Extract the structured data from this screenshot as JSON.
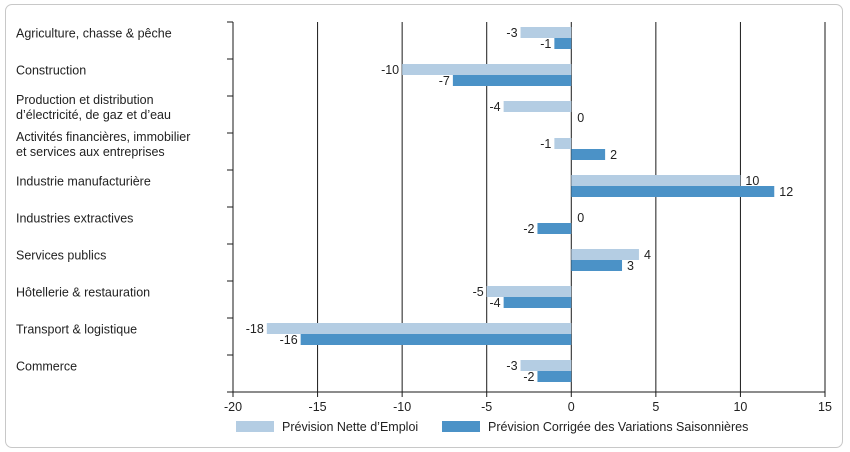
{
  "chart_data": {
    "type": "bar",
    "orientation": "horizontal",
    "categories": [
      [
        "Agriculture, chasse & pêche"
      ],
      [
        "Construction"
      ],
      [
        "Production et distribution",
        "d’électricité, de gaz et d’eau"
      ],
      [
        "Activités financières, immobilier",
        "et services aux entreprises"
      ],
      [
        "Industrie manufacturière"
      ],
      [
        "Industries extractives"
      ],
      [
        "Services publics"
      ],
      [
        "Hôtellerie & restauration"
      ],
      [
        "Transport & logistique"
      ],
      [
        "Commerce"
      ]
    ],
    "series": [
      {
        "name": "Prévision Nette d’Emploi",
        "color": "#b4cde3",
        "values": [
          -3,
          -10,
          -4,
          -1,
          10,
          0,
          4,
          -5,
          -18,
          -3
        ]
      },
      {
        "name": "Prévision Corrigée des Variations Saisonnières",
        "color": "#4b92c7",
        "values": [
          -1,
          -7,
          0,
          2,
          12,
          -2,
          3,
          -4,
          -16,
          -2
        ]
      }
    ],
    "xlim": [
      -20,
      15
    ],
    "xticks": [
      -20,
      -15,
      -10,
      -5,
      0,
      5,
      10,
      15
    ],
    "xtick_labels": [
      "-20",
      "-15",
      "-10",
      "-5",
      "0",
      "5",
      "10",
      "15"
    ],
    "grid": "vertical",
    "legend_position": "bottom"
  }
}
